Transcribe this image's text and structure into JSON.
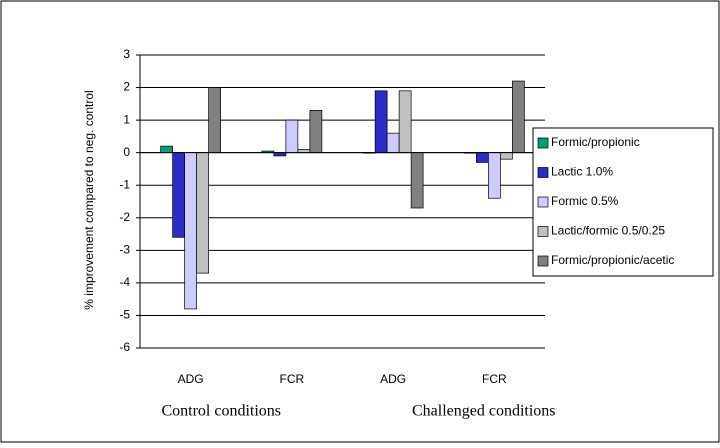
{
  "chart_data": {
    "type": "bar",
    "y_label": "% improvement compared to neg. control",
    "categories": [
      "ADG",
      "FCR",
      "ADG",
      "FCR"
    ],
    "groups": [
      "Control conditions",
      "Challenged conditions"
    ],
    "series": [
      {
        "name": "Formic/propionic",
        "color": "#00a07c",
        "values": [
          0.2,
          0.05,
          0,
          0
        ]
      },
      {
        "name": "Lactic 1.0%",
        "color": "#2b2bc8",
        "values": [
          -2.6,
          -0.1,
          1.9,
          -0.3
        ]
      },
      {
        "name": "Formic 0.5%",
        "color": "#ccccff",
        "values": [
          -4.8,
          1.0,
          0.6,
          -1.4
        ]
      },
      {
        "name": "Lactic/formic 0.5/0.25",
        "color": "#c0c0c0",
        "values": [
          -3.7,
          0.1,
          1.9,
          -0.2
        ]
      },
      {
        "name": "Formic/propionic/acetic",
        "color": "#808080",
        "values": [
          2.0,
          1.3,
          -1.7,
          2.2
        ]
      }
    ],
    "ylim": [
      -6,
      3
    ],
    "yticks": [
      -6,
      -5,
      -4,
      -3,
      -2,
      -1,
      0,
      1,
      2,
      3
    ],
    "grid": true,
    "legend": "right"
  }
}
